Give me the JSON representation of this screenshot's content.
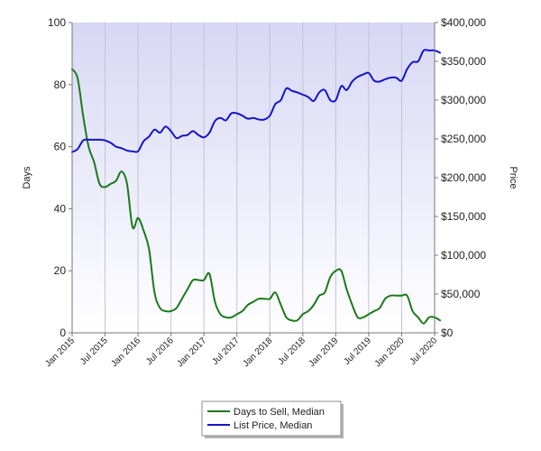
{
  "chart_data": {
    "type": "line",
    "x_ticks": [
      "Jan 2015",
      "Jul 2015",
      "Jan 2016",
      "Jul 2016",
      "Jan 2017",
      "Jul 2017",
      "Jan 2018",
      "Jul 2018",
      "Jan 2019",
      "Jul 2019",
      "Jan 2020",
      "Jul 2020"
    ],
    "x_range": [
      "2015-01",
      "2020-07"
    ],
    "left_axis": {
      "label": "Days",
      "range": [
        0,
        100
      ],
      "ticks": [
        "0",
        "20",
        "40",
        "60",
        "80",
        "100"
      ]
    },
    "right_axis": {
      "label": "Price",
      "range": [
        0,
        400000
      ],
      "ticks": [
        "$0",
        "$50,000",
        "$100,000",
        "$150,000",
        "$200,000",
        "$250,000",
        "$300,000",
        "$350,000",
        "$400,000"
      ]
    },
    "grid": "vertical",
    "legend_position": "bottom",
    "series": [
      {
        "name": "Days to Sell, Median",
        "axis": "left",
        "color": "#1a7a1a",
        "points": [
          [
            "2015-01",
            85
          ],
          [
            "2015-02",
            82
          ],
          [
            "2015-03",
            70
          ],
          [
            "2015-04",
            60
          ],
          [
            "2015-05",
            55
          ],
          [
            "2015-06",
            48
          ],
          [
            "2015-07",
            47
          ],
          [
            "2015-08",
            48
          ],
          [
            "2015-09",
            49
          ],
          [
            "2015-10",
            52
          ],
          [
            "2015-11",
            48
          ],
          [
            "2015-12",
            34
          ],
          [
            "2016-01",
            37
          ],
          [
            "2016-02",
            33
          ],
          [
            "2016-03",
            27
          ],
          [
            "2016-04",
            13
          ],
          [
            "2016-05",
            8
          ],
          [
            "2016-06",
            7
          ],
          [
            "2016-07",
            7
          ],
          [
            "2016-08",
            8
          ],
          [
            "2016-09",
            11
          ],
          [
            "2016-10",
            14
          ],
          [
            "2016-11",
            17
          ],
          [
            "2016-12",
            17
          ],
          [
            "2017-01",
            17
          ],
          [
            "2017-02",
            19
          ],
          [
            "2017-03",
            10
          ],
          [
            "2017-04",
            6
          ],
          [
            "2017-05",
            5
          ],
          [
            "2017-06",
            5
          ],
          [
            "2017-07",
            6
          ],
          [
            "2017-08",
            7
          ],
          [
            "2017-09",
            9
          ],
          [
            "2017-10",
            10
          ],
          [
            "2017-11",
            11
          ],
          [
            "2017-12",
            11
          ],
          [
            "2018-01",
            11
          ],
          [
            "2018-02",
            13
          ],
          [
            "2018-03",
            9
          ],
          [
            "2018-04",
            5
          ],
          [
            "2018-05",
            4
          ],
          [
            "2018-06",
            4
          ],
          [
            "2018-07",
            6
          ],
          [
            "2018-08",
            7
          ],
          [
            "2018-09",
            9
          ],
          [
            "2018-10",
            12
          ],
          [
            "2018-11",
            13
          ],
          [
            "2018-12",
            18
          ],
          [
            "2019-01",
            20
          ],
          [
            "2019-02",
            20
          ],
          [
            "2019-03",
            14
          ],
          [
            "2019-04",
            9
          ],
          [
            "2019-05",
            5
          ],
          [
            "2019-06",
            5
          ],
          [
            "2019-07",
            6
          ],
          [
            "2019-08",
            7
          ],
          [
            "2019-09",
            8
          ],
          [
            "2019-10",
            11
          ],
          [
            "2019-11",
            12
          ],
          [
            "2019-12",
            12
          ],
          [
            "2020-01",
            12
          ],
          [
            "2020-02",
            12
          ],
          [
            "2020-03",
            7
          ],
          [
            "2020-04",
            5
          ],
          [
            "2020-05",
            3
          ],
          [
            "2020-06",
            5
          ],
          [
            "2020-07",
            5
          ],
          [
            "2020-08",
            4
          ]
        ]
      },
      {
        "name": "List Price, Median",
        "axis": "right",
        "color": "#1515c8",
        "points": [
          [
            "2015-01",
            233000
          ],
          [
            "2015-02",
            237000
          ],
          [
            "2015-03",
            248000
          ],
          [
            "2015-04",
            249000
          ],
          [
            "2015-05",
            249000
          ],
          [
            "2015-06",
            249000
          ],
          [
            "2015-07",
            248000
          ],
          [
            "2015-08",
            245000
          ],
          [
            "2015-09",
            240000
          ],
          [
            "2015-10",
            238000
          ],
          [
            "2015-11",
            235000
          ],
          [
            "2015-12",
            234000
          ],
          [
            "2016-01",
            234000
          ],
          [
            "2016-02",
            247000
          ],
          [
            "2016-03",
            253000
          ],
          [
            "2016-04",
            262000
          ],
          [
            "2016-05",
            258000
          ],
          [
            "2016-06",
            266000
          ],
          [
            "2016-07",
            260000
          ],
          [
            "2016-08",
            251000
          ],
          [
            "2016-09",
            254000
          ],
          [
            "2016-10",
            255000
          ],
          [
            "2016-11",
            260000
          ],
          [
            "2016-12",
            255000
          ],
          [
            "2017-01",
            252000
          ],
          [
            "2017-02",
            258000
          ],
          [
            "2017-03",
            273000
          ],
          [
            "2017-04",
            277000
          ],
          [
            "2017-05",
            274000
          ],
          [
            "2017-06",
            283000
          ],
          [
            "2017-07",
            283000
          ],
          [
            "2017-08",
            280000
          ],
          [
            "2017-09",
            276000
          ],
          [
            "2017-10",
            277000
          ],
          [
            "2017-11",
            275000
          ],
          [
            "2017-12",
            275000
          ],
          [
            "2018-01",
            280000
          ],
          [
            "2018-02",
            295000
          ],
          [
            "2018-03",
            300000
          ],
          [
            "2018-04",
            315000
          ],
          [
            "2018-05",
            312000
          ],
          [
            "2018-06",
            310000
          ],
          [
            "2018-07",
            307000
          ],
          [
            "2018-08",
            304000
          ],
          [
            "2018-09",
            299000
          ],
          [
            "2018-10",
            310000
          ],
          [
            "2018-11",
            313000
          ],
          [
            "2018-12",
            300000
          ],
          [
            "2019-01",
            300000
          ],
          [
            "2019-02",
            318000
          ],
          [
            "2019-03",
            313000
          ],
          [
            "2019-04",
            324000
          ],
          [
            "2019-05",
            330000
          ],
          [
            "2019-06",
            333000
          ],
          [
            "2019-07",
            335000
          ],
          [
            "2019-08",
            325000
          ],
          [
            "2019-09",
            324000
          ],
          [
            "2019-10",
            327000
          ],
          [
            "2019-11",
            329000
          ],
          [
            "2019-12",
            329000
          ],
          [
            "2020-01",
            325000
          ],
          [
            "2020-02",
            340000
          ],
          [
            "2020-03",
            349000
          ],
          [
            "2020-04",
            350000
          ],
          [
            "2020-05",
            364000
          ],
          [
            "2020-06",
            364000
          ],
          [
            "2020-07",
            364000
          ],
          [
            "2020-08",
            361000
          ]
        ]
      }
    ]
  }
}
